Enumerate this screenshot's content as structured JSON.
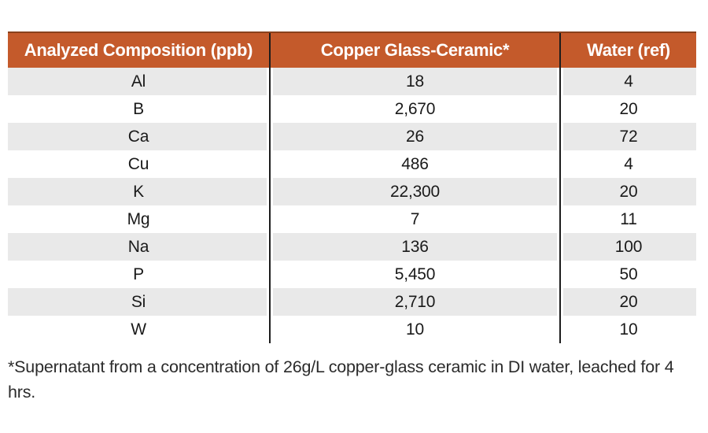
{
  "table": {
    "headers": [
      "Analyzed Composition (ppb)",
      "Copper Glass-Ceramic*",
      "Water (ref)"
    ],
    "rows": [
      {
        "element": "Al",
        "copper": "18",
        "water": "4"
      },
      {
        "element": "B",
        "copper": "2,670",
        "water": "20"
      },
      {
        "element": "Ca",
        "copper": "26",
        "water": "72"
      },
      {
        "element": "Cu",
        "copper": "486",
        "water": "4"
      },
      {
        "element": "K",
        "copper": "22,300",
        "water": "20"
      },
      {
        "element": "Mg",
        "copper": "7",
        "water": "11"
      },
      {
        "element": "Na",
        "copper": "136",
        "water": "100"
      },
      {
        "element": "P",
        "copper": "5,450",
        "water": "50"
      },
      {
        "element": "Si",
        "copper": "2,710",
        "water": "20"
      },
      {
        "element": "W",
        "copper": "10",
        "water": "10"
      }
    ]
  },
  "footnote": "*Supernatant from a concentration of 26g/L copper-glass ceramic in DI water, leached for 4 hrs.",
  "colors": {
    "header_bg": "#C45A2B",
    "header_text": "#FFFFFF",
    "stripe": "#E9E9E9",
    "column_rule": "#1C1C1C",
    "body_text": "#1A1A1A"
  },
  "chart_data": {
    "type": "table",
    "columns": [
      "Analyzed Composition (ppb)",
      "Copper Glass-Ceramic*",
      "Water (ref)"
    ],
    "rows": [
      [
        "Al",
        18,
        4
      ],
      [
        "B",
        2670,
        20
      ],
      [
        "Ca",
        26,
        72
      ],
      [
        "Cu",
        486,
        4
      ],
      [
        "K",
        22300,
        20
      ],
      [
        "Mg",
        7,
        11
      ],
      [
        "Na",
        136,
        100
      ],
      [
        "P",
        5450,
        50
      ],
      [
        "Si",
        2710,
        20
      ],
      [
        "W",
        10,
        10
      ]
    ],
    "footnote": "*Supernatant from a concentration of 26g/L copper-glass ceramic in DI water, leached for 4 hrs.",
    "layout": {
      "striped_rows": true,
      "header_style": "orange-band",
      "column_separators": "black-vertical-rules"
    }
  }
}
